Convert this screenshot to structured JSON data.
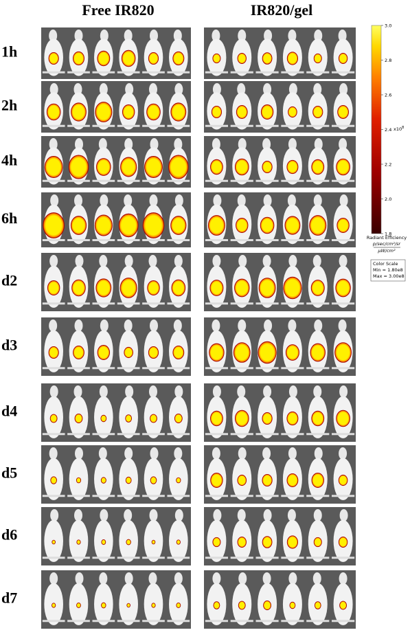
{
  "columns": [
    "Free IR820",
    "IR820/gel"
  ],
  "rows": [
    "1h",
    "2h",
    "4h",
    "6h",
    "d2",
    "d3",
    "d4",
    "d5",
    "d6",
    "d7"
  ],
  "colorbar": {
    "ticks": [
      {
        "value": 3.0,
        "label": "3.0"
      },
      {
        "value": 2.8,
        "label": "2.8"
      },
      {
        "value": 2.6,
        "label": "2.6"
      },
      {
        "value": 2.4,
        "label": "2.4"
      },
      {
        "value": 2.2,
        "label": "2.2"
      },
      {
        "value": 2.0,
        "label": "2.0"
      },
      {
        "value": 1.8,
        "label": "1.8"
      }
    ],
    "range": [
      1.8,
      3.0
    ],
    "multiplier": "x10",
    "exponent": "8",
    "title": "Radiant Efficiency",
    "unit_top": "p/sec/cm²/sr",
    "unit_bottom": "µW/cm²"
  },
  "color_scale_box": {
    "title": "Color Scale",
    "min": "Min = 1.80e8",
    "max": "Max = 3.00e8"
  }
}
